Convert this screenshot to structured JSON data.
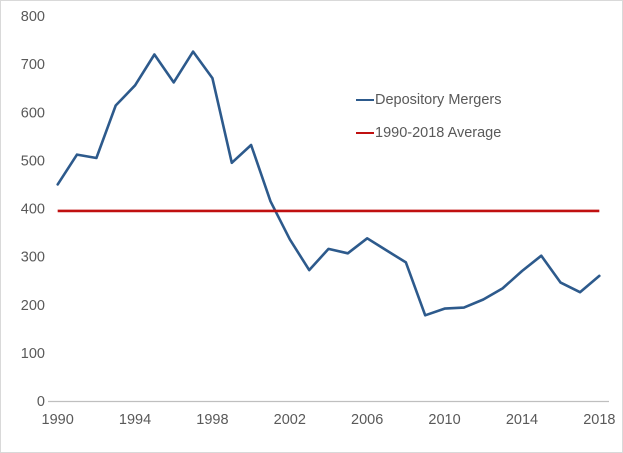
{
  "chart_data": {
    "type": "line",
    "title": "",
    "xlabel": "",
    "ylabel": "",
    "x": [
      1990,
      1991,
      1992,
      1993,
      1994,
      1995,
      1996,
      1997,
      1998,
      1999,
      2000,
      2001,
      2002,
      2003,
      2004,
      2005,
      2006,
      2007,
      2008,
      2009,
      2010,
      2011,
      2012,
      2013,
      2014,
      2015,
      2016,
      2017,
      2018
    ],
    "series": [
      {
        "name": "Depository Mergers",
        "type": "line",
        "color": "#2D5A8C",
        "values": [
          450,
          512,
          505,
          614,
          656,
          720,
          662,
          726,
          671,
          495,
          532,
          415,
          336,
          272,
          316,
          307,
          338,
          313,
          288,
          178,
          192,
          194,
          211,
          234,
          270,
          302,
          246,
          226,
          260
        ]
      },
      {
        "name": "1990-2018 Average",
        "type": "constant-line",
        "color": "#C01010",
        "value": 395
      }
    ],
    "ylim": [
      0,
      800
    ],
    "y_ticks": [
      0,
      100,
      200,
      300,
      400,
      500,
      600,
      700,
      800
    ],
    "x_ticks": [
      1990,
      1994,
      1998,
      2002,
      2006,
      2010,
      2014,
      2018
    ],
    "grid": false,
    "legend_position": "inside-upper-right",
    "axis_color": "#BFBFBF",
    "label_color": "#595959",
    "background_color": "#FFFFFF",
    "border_color": "#D9D9D9"
  }
}
